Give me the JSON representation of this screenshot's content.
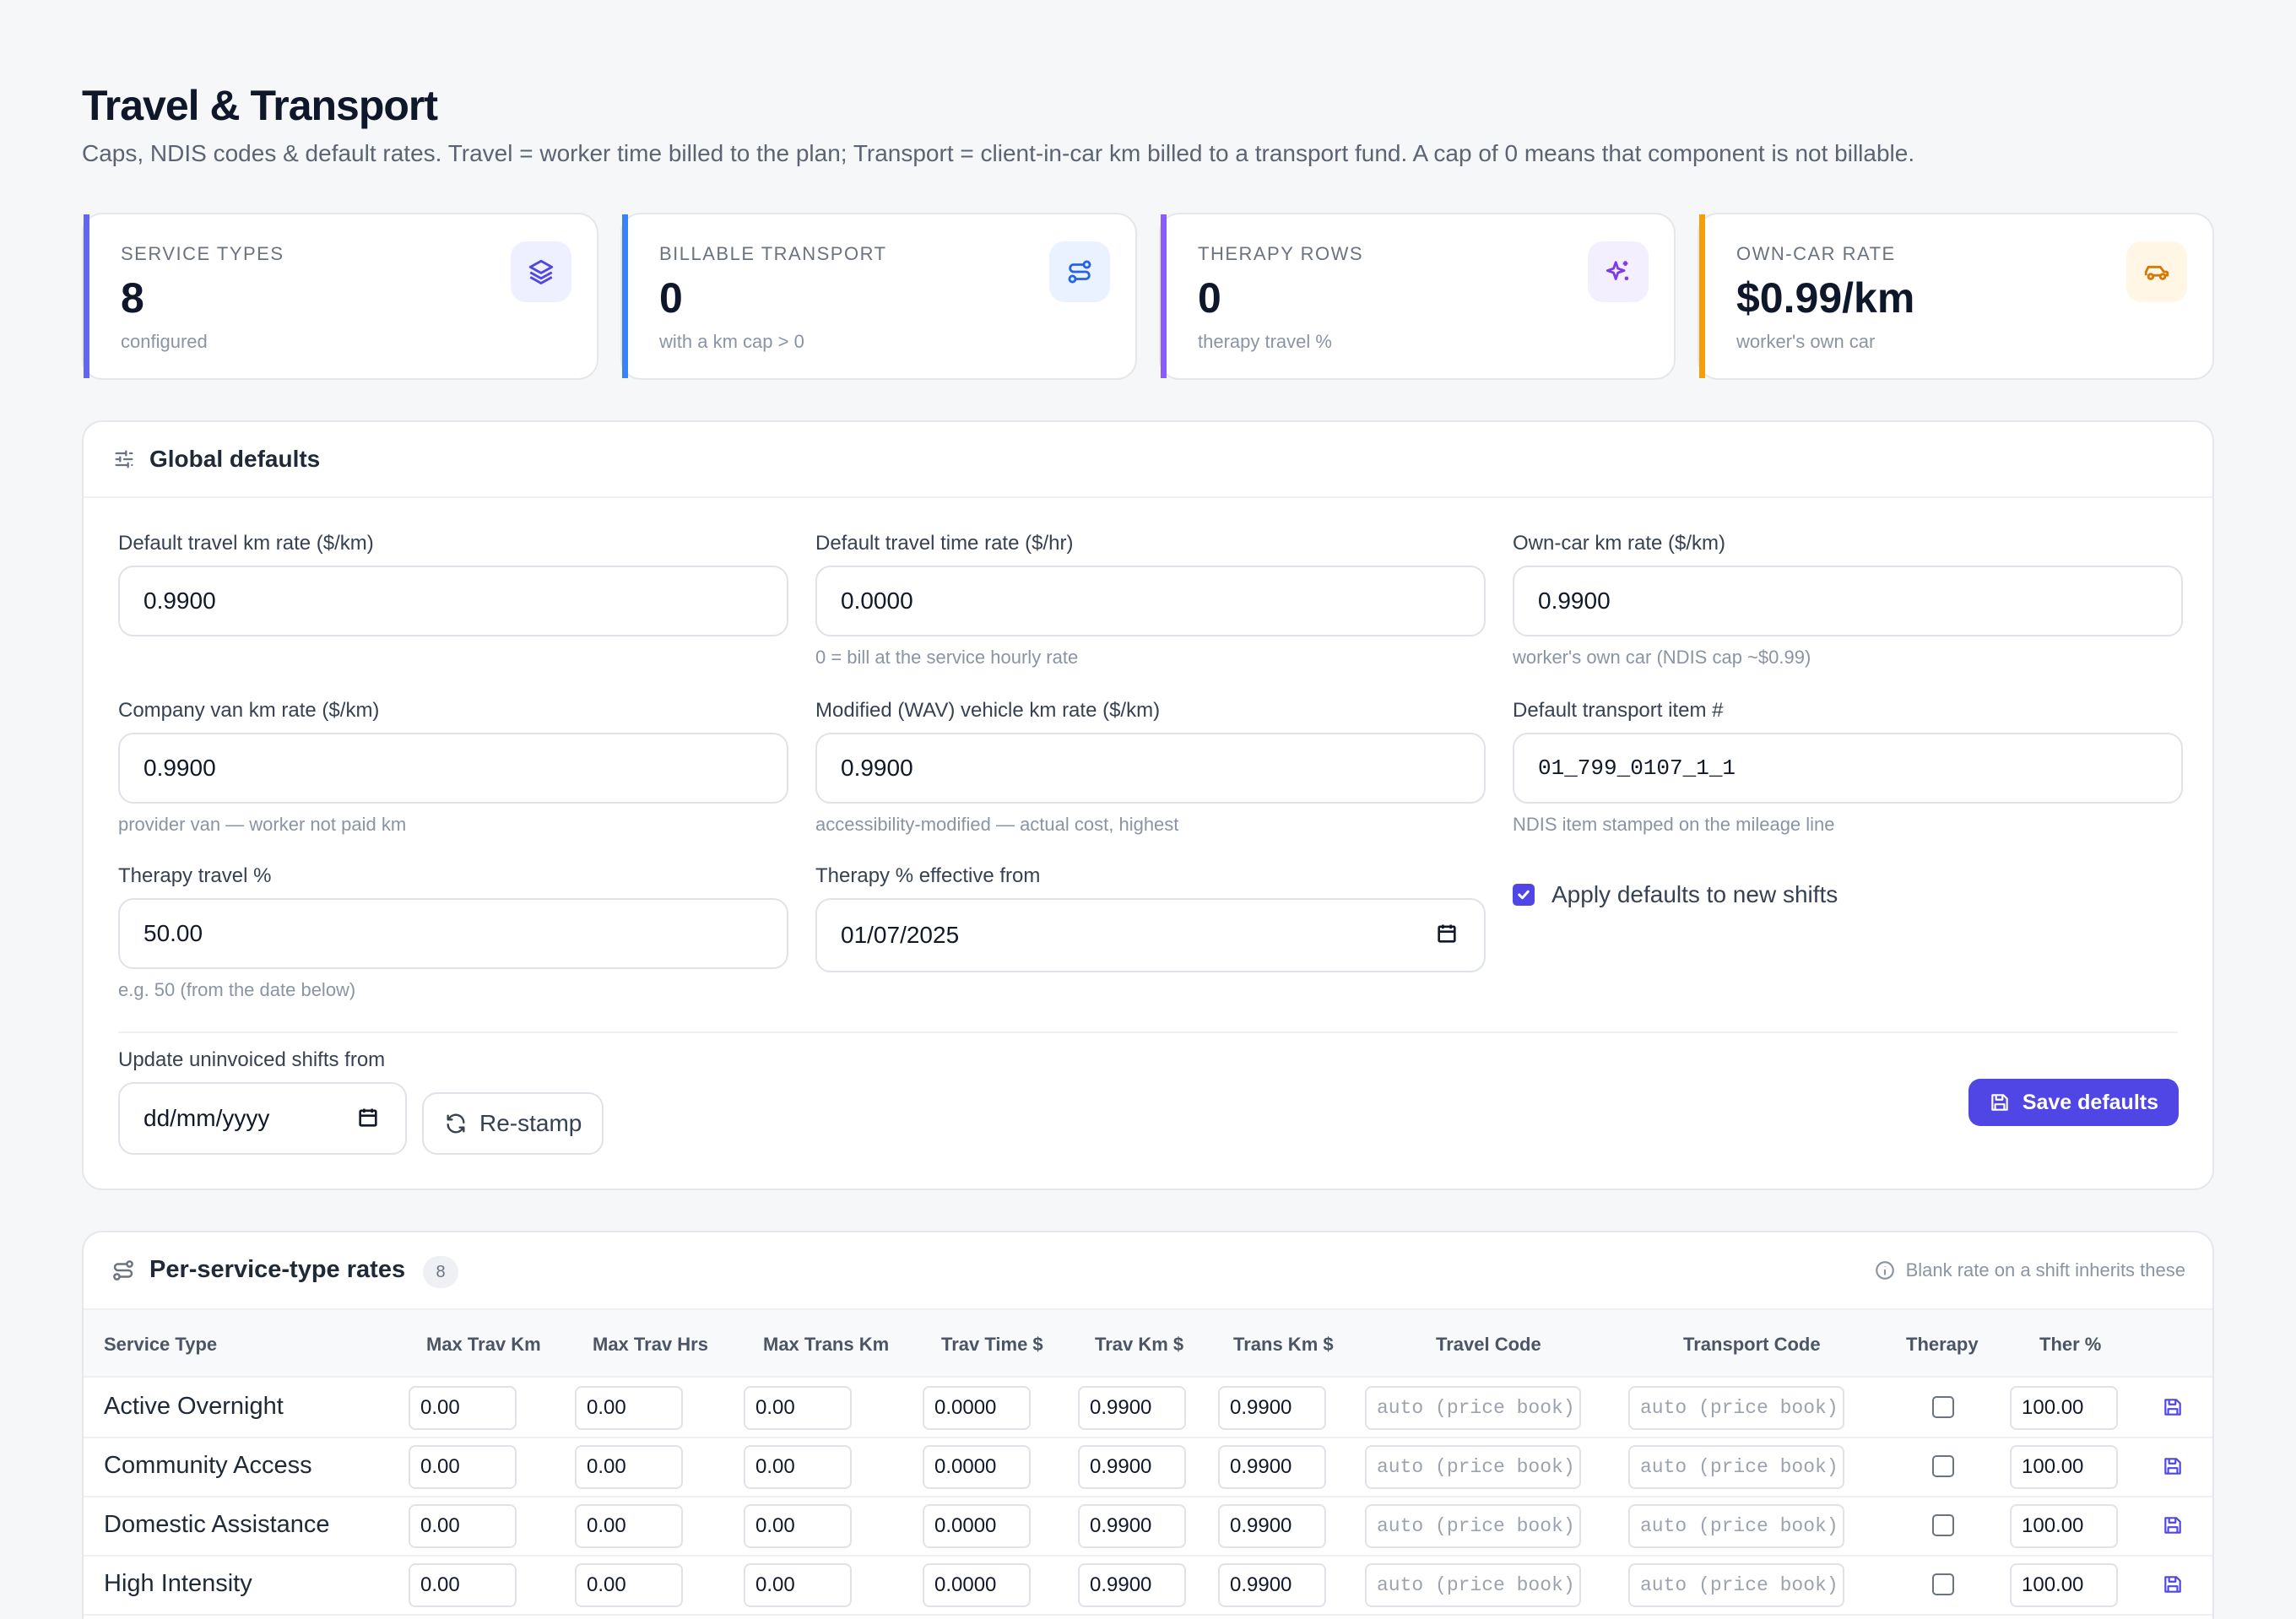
{
  "header": {
    "title": "Travel & Transport",
    "subtitle": "Caps, NDIS codes & default rates. Travel = worker time billed to the plan; Transport = client-in-car km billed to a transport fund. A cap of 0 means that component is not billable."
  },
  "stats": [
    {
      "label": "SERVICE TYPES",
      "value": "8",
      "sub": "configured",
      "icon": "layers-icon",
      "accent": "#6366f1",
      "icon_bg": "#eef0ff",
      "icon_color": "#4f46e5"
    },
    {
      "label": "BILLABLE TRANSPORT",
      "value": "0",
      "sub": "with a km cap > 0",
      "icon": "route-icon",
      "accent": "#3b82f6",
      "icon_bg": "#eaf2ff",
      "icon_color": "#2563eb"
    },
    {
      "label": "THERAPY ROWS",
      "value": "0",
      "sub": "therapy travel %",
      "icon": "sparkles-icon",
      "accent": "#8b5cf6",
      "icon_bg": "#f3efff",
      "icon_color": "#7c3aed"
    },
    {
      "label": "OWN-CAR RATE",
      "value": "$0.99/km",
      "sub": "worker's own car",
      "icon": "car-icon",
      "accent": "#f59e0b",
      "icon_bg": "#fff6e5",
      "icon_color": "#d97706"
    }
  ],
  "global_defaults": {
    "title": "Global defaults",
    "fields": {
      "travel_km_rate": {
        "label": "Default travel km rate ($/km)",
        "value": "0.9900",
        "hint": ""
      },
      "travel_time_rate": {
        "label": "Default travel time rate ($/hr)",
        "value": "0.0000",
        "hint": "0 = bill at the service hourly rate"
      },
      "own_car_rate": {
        "label": "Own-car km rate ($/km)",
        "value": "0.9900",
        "hint": "worker's own car (NDIS cap ~$0.99)"
      },
      "van_rate": {
        "label": "Company van km rate ($/km)",
        "value": "0.9900",
        "hint": "provider van — worker not paid km"
      },
      "wav_rate": {
        "label": "Modified (WAV) vehicle km rate ($/km)",
        "value": "0.9900",
        "hint": "accessibility-modified — actual cost, highest"
      },
      "transport_item": {
        "label": "Default transport item #",
        "value": "01_799_0107_1_1",
        "hint": "NDIS item stamped on the mileage line"
      },
      "therapy_pct": {
        "label": "Therapy travel %",
        "value": "50.00",
        "hint": "e.g. 50 (from the date below)"
      },
      "therapy_from": {
        "label": "Therapy % effective from",
        "value": "01/07/2025"
      },
      "apply_defaults": {
        "label": "Apply defaults to new shifts",
        "checked": true
      },
      "update_from": {
        "label": "Update uninvoiced shifts from",
        "value": "dd/mm/yyyy"
      }
    },
    "restamp_label": "Re-stamp",
    "save_label": "Save defaults"
  },
  "rates_table": {
    "title": "Per-service-type rates",
    "count": "8",
    "info": "Blank rate on a shift inherits these",
    "columns": [
      "Service Type",
      "Max Trav Km",
      "Max Trav Hrs",
      "Max Trans Km",
      "Trav Time $",
      "Trav Km $",
      "Trans Km $",
      "Travel Code",
      "Transport Code",
      "Therapy",
      "Ther %"
    ],
    "code_placeholder": "auto (price book)",
    "rows": [
      {
        "name": "Active Overnight",
        "max_trav_km": "0.00",
        "max_trav_hrs": "0.00",
        "max_trans_km": "0.00",
        "trav_time": "0.0000",
        "trav_km": "0.9900",
        "trans_km": "0.9900",
        "therapy": false,
        "ther_pct": "100.00"
      },
      {
        "name": "Community Access",
        "max_trav_km": "0.00",
        "max_trav_hrs": "0.00",
        "max_trans_km": "0.00",
        "trav_time": "0.0000",
        "trav_km": "0.9900",
        "trans_km": "0.9900",
        "therapy": false,
        "ther_pct": "100.00"
      },
      {
        "name": "Domestic Assistance",
        "max_trav_km": "0.00",
        "max_trav_hrs": "0.00",
        "max_trans_km": "0.00",
        "trav_time": "0.0000",
        "trav_km": "0.9900",
        "trans_km": "0.9900",
        "therapy": false,
        "ther_pct": "100.00"
      },
      {
        "name": "High Intensity",
        "max_trav_km": "0.00",
        "max_trav_hrs": "0.00",
        "max_trans_km": "0.00",
        "trav_time": "0.0000",
        "trav_km": "0.9900",
        "trans_km": "0.9900",
        "therapy": false,
        "ther_pct": "100.00"
      }
    ]
  }
}
